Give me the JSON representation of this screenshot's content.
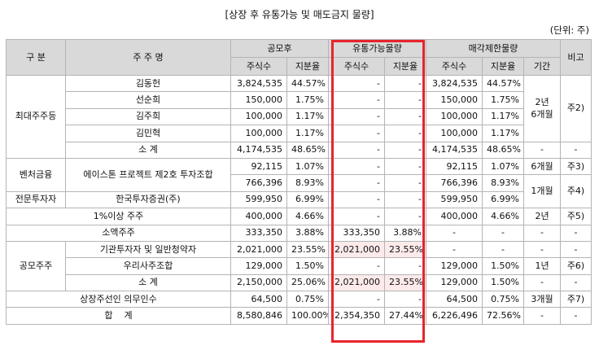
{
  "title": "[상장 후 유통가능 및 매도금지 물량]",
  "unit": "(단위: 주)",
  "header": {
    "category": "구 분",
    "shareholder": "주 주 명",
    "post_ipo": "공모후",
    "tradable": "유통가능물량",
    "lockup": "매각제한물량",
    "remarks": "비고",
    "shares": "주식수",
    "ratio": "지분율",
    "period": "기간"
  },
  "groups": {
    "major": "최대주주등",
    "venture": "벤처금융",
    "professional": "전문투자자",
    "public": "공모주주"
  },
  "rows": [
    {
      "name": "김동헌",
      "post_shares": "3,824,535",
      "post_ratio": "44.57%",
      "trade_shares": "-",
      "trade_ratio": "-",
      "lock_shares": "3,824,535",
      "lock_ratio": "44.57%"
    },
    {
      "name": "선순희",
      "post_shares": "150,000",
      "post_ratio": "1.75%",
      "trade_shares": "-",
      "trade_ratio": "-",
      "lock_shares": "150,000",
      "lock_ratio": "1.75%"
    },
    {
      "name": "김주희",
      "post_shares": "100,000",
      "post_ratio": "1.17%",
      "trade_shares": "-",
      "trade_ratio": "-",
      "lock_shares": "100,000",
      "lock_ratio": "1.17%"
    },
    {
      "name": "김민혁",
      "post_shares": "100,000",
      "post_ratio": "1.17%",
      "trade_shares": "-",
      "trade_ratio": "-",
      "lock_shares": "100,000",
      "lock_ratio": "1.17%"
    },
    {
      "name": "소 계",
      "post_shares": "4,174,535",
      "post_ratio": "48.65%",
      "trade_shares": "-",
      "trade_ratio": "-",
      "lock_shares": "4,174,535",
      "lock_ratio": "48.65%",
      "period": "-",
      "remark": "-"
    },
    {
      "name": "에이스톤 프로젝트 제2호 투자조합",
      "post_shares": "92,115",
      "post_ratio": "1.07%",
      "trade_shares": "-",
      "trade_ratio": "-",
      "lock_shares": "92,115",
      "lock_ratio": "1.07%",
      "period": "6개월",
      "remark": "주3)"
    },
    {
      "name": "",
      "post_shares": "766,396",
      "post_ratio": "8.93%",
      "trade_shares": "-",
      "trade_ratio": "-",
      "lock_shares": "766,396",
      "lock_ratio": "8.93%"
    },
    {
      "name": "한국투자증권(주)",
      "post_shares": "599,950",
      "post_ratio": "6.99%",
      "trade_shares": "-",
      "trade_ratio": "-",
      "lock_shares": "599,950",
      "lock_ratio": "6.99%"
    },
    {
      "name": "1%이상 주주",
      "post_shares": "400,000",
      "post_ratio": "4.66%",
      "trade_shares": "-",
      "trade_ratio": "-",
      "lock_shares": "400,000",
      "lock_ratio": "4.66%",
      "period": "2년",
      "remark": "주5)"
    },
    {
      "name": "소액주주",
      "post_shares": "333,350",
      "post_ratio": "3.88%",
      "trade_shares": "333,350",
      "trade_ratio": "3.88%",
      "lock_shares": "-",
      "lock_ratio": "-",
      "period": "-",
      "remark": "-"
    },
    {
      "name": "기관투자자 및 일반청약자",
      "post_shares": "2,021,000",
      "post_ratio": "23.55%",
      "trade_shares": "2,021,000",
      "trade_ratio": "23.55%",
      "lock_shares": "-",
      "lock_ratio": "-",
      "period": "-",
      "remark": "-"
    },
    {
      "name": "우리사주조합",
      "post_shares": "129,000",
      "post_ratio": "1.50%",
      "trade_shares": "-",
      "trade_ratio": "-",
      "lock_shares": "129,000",
      "lock_ratio": "1.50%",
      "period": "1년",
      "remark": "주6)"
    },
    {
      "name": "소 계",
      "post_shares": "2,150,000",
      "post_ratio": "25.06%",
      "trade_shares": "2,021,000",
      "trade_ratio": "23.55%",
      "lock_shares": "129,000",
      "lock_ratio": "1.50%",
      "period": "-",
      "remark": "-"
    },
    {
      "name": "상장주선인 의무인수",
      "post_shares": "64,500",
      "post_ratio": "0.75%",
      "trade_shares": "-",
      "trade_ratio": "-",
      "lock_shares": "64,500",
      "lock_ratio": "0.75%",
      "period": "3개월",
      "remark": "주7)"
    },
    {
      "name": "합    계",
      "post_shares": "8,580,846",
      "post_ratio": "100.00%",
      "trade_shares": "2,354,350",
      "trade_ratio": "27.44%",
      "lock_shares": "6,226,496",
      "lock_ratio": "72.56%",
      "period": "-",
      "remark": "-"
    }
  ],
  "merged": {
    "major_period": "2년\n6개월",
    "major_remark": "주2)",
    "venture_period2": "1개월",
    "venture_remark2": "주4)"
  },
  "highlight_color": "#e8242b"
}
